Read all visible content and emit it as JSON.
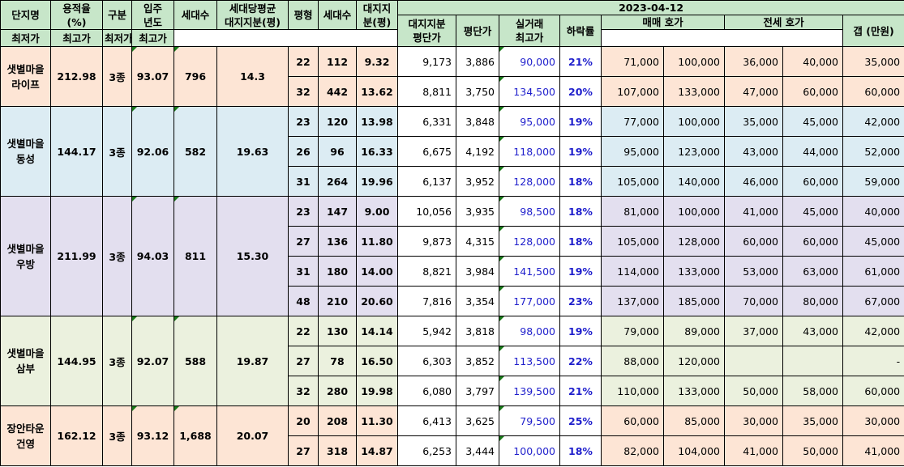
{
  "header": {
    "col_complex": "단지명",
    "col_far": [
      "용적율",
      "(%)"
    ],
    "col_zone": "구분",
    "col_year": [
      "입주",
      "년도"
    ],
    "col_households": "세대수",
    "col_land_avg": [
      "세대당평균",
      "대지지분(평)"
    ],
    "col_size": "평형",
    "col_households2": "세대수",
    "col_land": [
      "대지지",
      "분(평)"
    ],
    "col_land_price": [
      "대지지분",
      "평단가"
    ],
    "col_py_price": "평단가",
    "col_trade_max": [
      "실거래",
      "최고가"
    ],
    "col_drop": "하락률",
    "date": "2023-04-12",
    "sale": "매매 호가",
    "jeonse": "전세 호가",
    "gap": "갭 (만원)",
    "min": "최저가",
    "max": "최고가"
  },
  "groups": [
    {
      "name": [
        "샛별마을",
        "라이프"
      ],
      "far": "212.98",
      "zone": "3종",
      "year": "93.07",
      "households": "796",
      "land_avg": "14.3",
      "rows": [
        {
          "size": "22",
          "hh": "112",
          "land": "9.32",
          "land_price": "9,173",
          "py_price": "3,886",
          "trade_max": "90,000",
          "drop": "21%",
          "sale_min": "71,000",
          "sale_max": "100,000",
          "j_min": "36,000",
          "j_max": "40,000",
          "gap": "35,000"
        },
        {
          "size": "32",
          "hh": "442",
          "land": "13.62",
          "land_price": "8,811",
          "py_price": "3,750",
          "trade_max": "134,500",
          "drop": "20%",
          "sale_min": "107,000",
          "sale_max": "133,000",
          "j_min": "47,000",
          "j_max": "60,000",
          "gap": "60,000"
        }
      ]
    },
    {
      "name": [
        "샛별마을",
        "동성"
      ],
      "far": "144.17",
      "zone": "3종",
      "year": "92.06",
      "households": "582",
      "land_avg": "19.63",
      "rows": [
        {
          "size": "23",
          "hh": "120",
          "land": "13.98",
          "land_price": "6,331",
          "py_price": "3,848",
          "trade_max": "95,000",
          "drop": "19%",
          "sale_min": "77,000",
          "sale_max": "100,000",
          "j_min": "35,000",
          "j_max": "45,000",
          "gap": "42,000"
        },
        {
          "size": "26",
          "hh": "96",
          "land": "16.33",
          "land_price": "6,675",
          "py_price": "4,192",
          "trade_max": "118,000",
          "drop": "19%",
          "sale_min": "95,000",
          "sale_max": "123,000",
          "j_min": "43,000",
          "j_max": "44,000",
          "gap": "52,000"
        },
        {
          "size": "31",
          "hh": "264",
          "land": "19.96",
          "land_price": "6,137",
          "py_price": "3,952",
          "trade_max": "128,000",
          "drop": "18%",
          "sale_min": "105,000",
          "sale_max": "140,000",
          "j_min": "46,000",
          "j_max": "60,000",
          "gap": "59,000"
        }
      ]
    },
    {
      "name": [
        "샛별마을",
        "우방"
      ],
      "far": "211.99",
      "zone": "3종",
      "year": "94.03",
      "households": "811",
      "land_avg": "15.30",
      "rows": [
        {
          "size": "23",
          "hh": "147",
          "land": "9.00",
          "land_price": "10,056",
          "py_price": "3,935",
          "trade_max": "98,500",
          "drop": "18%",
          "sale_min": "81,000",
          "sale_max": "100,000",
          "j_min": "41,000",
          "j_max": "45,000",
          "gap": "40,000"
        },
        {
          "size": "27",
          "hh": "136",
          "land": "11.80",
          "land_price": "9,873",
          "py_price": "4,315",
          "trade_max": "128,000",
          "drop": "18%",
          "sale_min": "105,000",
          "sale_max": "128,000",
          "j_min": "60,000",
          "j_max": "60,000",
          "gap": "45,000"
        },
        {
          "size": "31",
          "hh": "180",
          "land": "14.00",
          "land_price": "8,821",
          "py_price": "3,984",
          "trade_max": "141,500",
          "drop": "19%",
          "sale_min": "114,000",
          "sale_max": "133,000",
          "j_min": "53,000",
          "j_max": "63,000",
          "gap": "61,000"
        },
        {
          "size": "48",
          "hh": "210",
          "land": "20.60",
          "land_price": "7,816",
          "py_price": "3,354",
          "trade_max": "177,000",
          "drop": "23%",
          "sale_min": "137,000",
          "sale_max": "185,000",
          "j_min": "70,000",
          "j_max": "80,000",
          "gap": "67,000"
        }
      ]
    },
    {
      "name": [
        "샛별마을",
        "삼부"
      ],
      "far": "144.95",
      "zone": "3종",
      "year": "92.07",
      "households": "588",
      "land_avg": "19.87",
      "rows": [
        {
          "size": "22",
          "hh": "130",
          "land": "14.14",
          "land_price": "5,942",
          "py_price": "3,818",
          "trade_max": "98,000",
          "drop": "19%",
          "sale_min": "79,000",
          "sale_max": "89,000",
          "j_min": "37,000",
          "j_max": "43,000",
          "gap": "42,000"
        },
        {
          "size": "27",
          "hh": "78",
          "land": "16.50",
          "land_price": "6,303",
          "py_price": "3,852",
          "trade_max": "113,500",
          "drop": "22%",
          "sale_min": "88,000",
          "sale_max": "120,000",
          "j_min": "",
          "j_max": "",
          "gap": "-"
        },
        {
          "size": "32",
          "hh": "280",
          "land": "19.98",
          "land_price": "6,080",
          "py_price": "3,797",
          "trade_max": "139,500",
          "drop": "21%",
          "sale_min": "110,000",
          "sale_max": "133,000",
          "j_min": "50,000",
          "j_max": "58,000",
          "gap": "60,000"
        }
      ]
    },
    {
      "name": [
        "장안타운",
        "건영"
      ],
      "far": "162.12",
      "zone": "3종",
      "year": "93.12",
      "households": "1,688",
      "land_avg": "20.07",
      "rows": [
        {
          "size": "20",
          "hh": "208",
          "land": "11.30",
          "land_price": "6,413",
          "py_price": "3,625",
          "trade_max": "79,500",
          "drop": "25%",
          "sale_min": "60,000",
          "sale_max": "85,000",
          "j_min": "30,000",
          "j_max": "35,000",
          "gap": "30,000"
        },
        {
          "size": "27",
          "hh": "318",
          "land": "14.87",
          "land_price": "6,253",
          "py_price": "3,444",
          "trade_max": "100,000",
          "drop": "18%",
          "sale_min": "82,000",
          "sale_max": "104,000",
          "j_min": "41,000",
          "j_max": "50,000",
          "gap": "41,000"
        }
      ]
    }
  ]
}
